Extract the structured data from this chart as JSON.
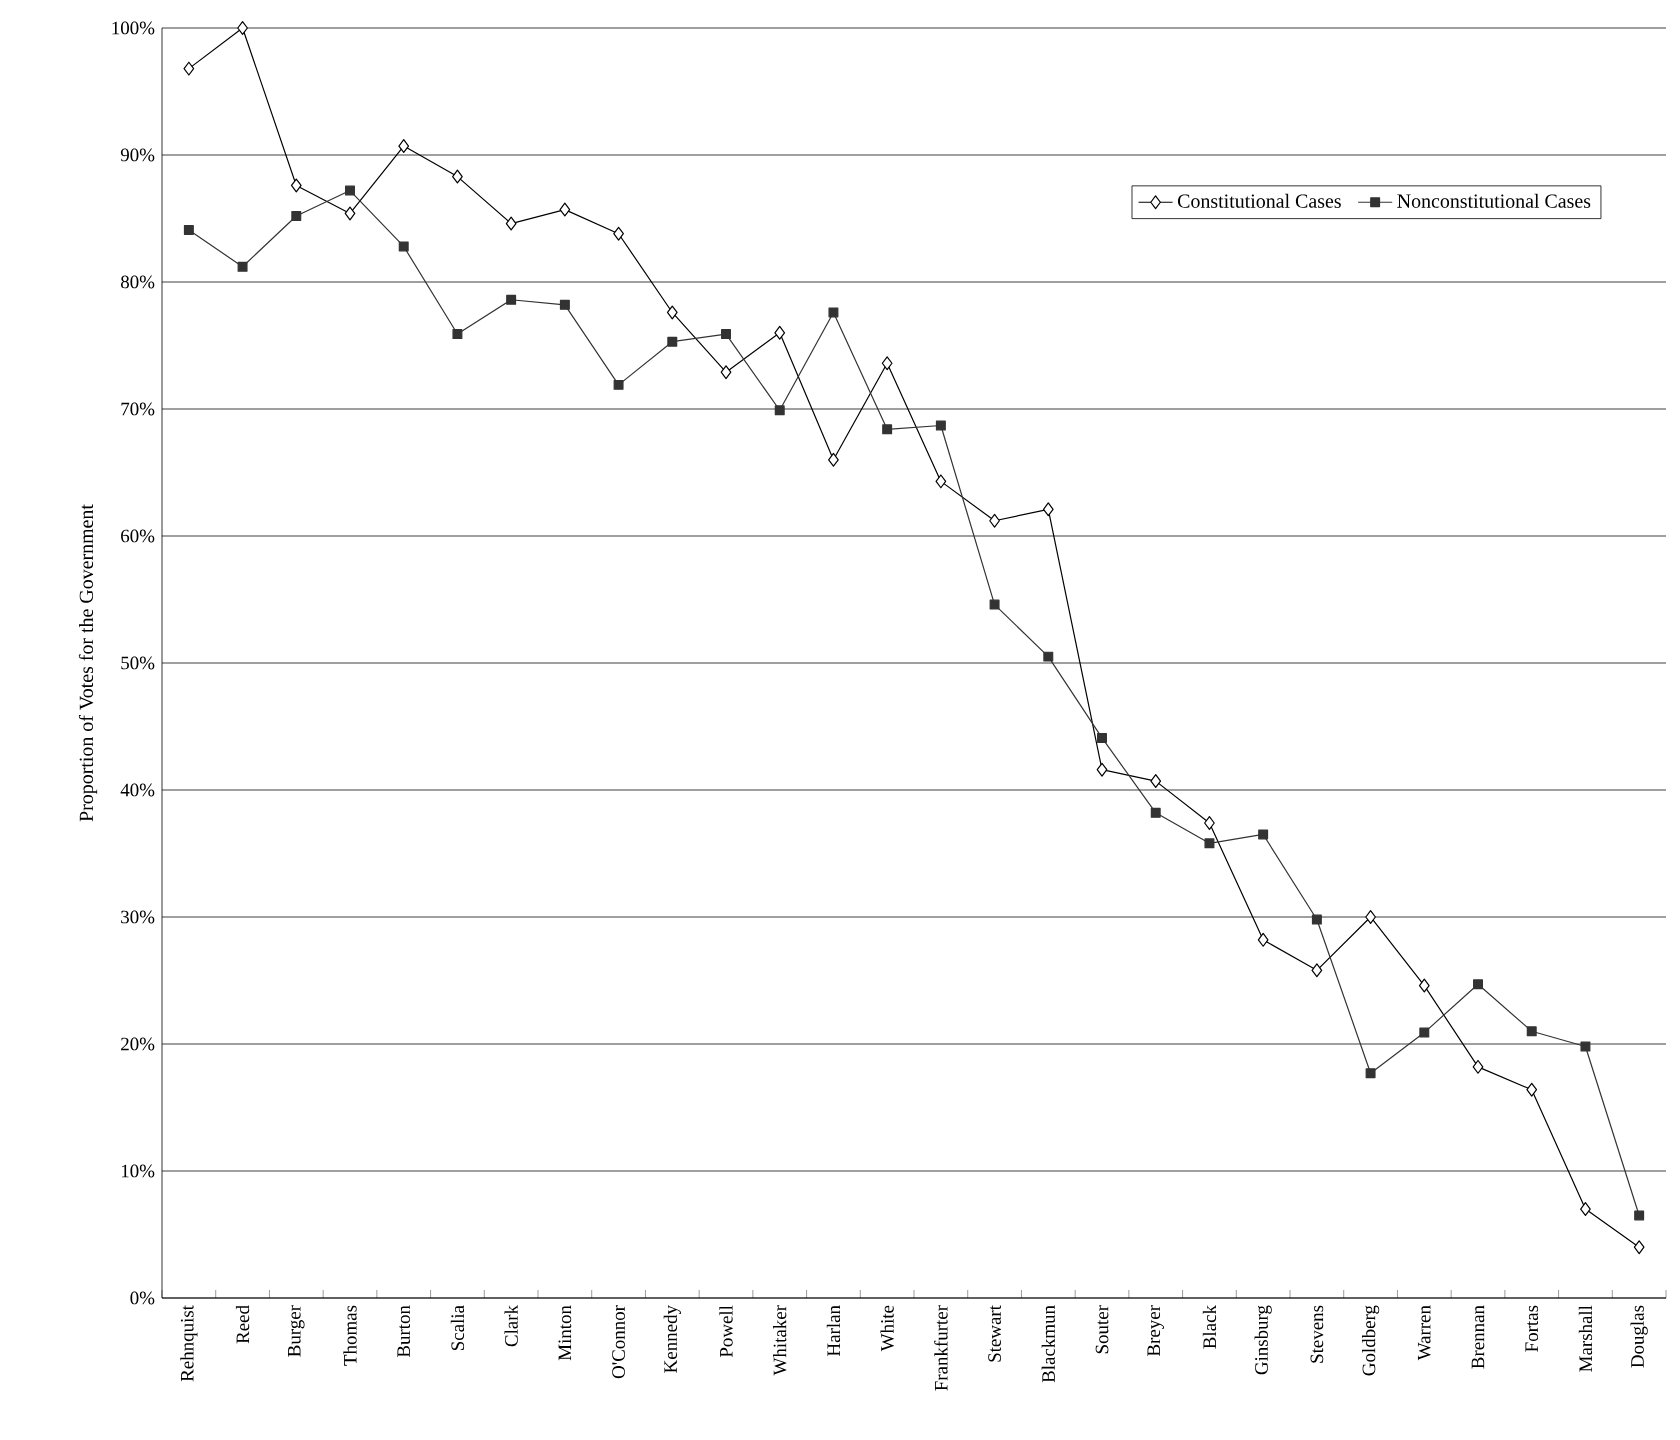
{
  "chart_data": {
    "type": "line",
    "ylabel": "Proportion of Votes for the Government",
    "categories": [
      "Rehnquist",
      "Reed",
      "Burger",
      "Thomas",
      "Burton",
      "Scalia",
      "Clark",
      "Minton",
      "O'Connor",
      "Kennedy",
      "Powell",
      "Whitaker",
      "Harlan",
      "White",
      "Frankfurter",
      "Stewart",
      "Blackmun",
      "Souter",
      "Breyer",
      "Black",
      "Ginsburg",
      "Stevens",
      "Goldberg",
      "Warren",
      "Brennan",
      "Fortas",
      "Marshall",
      "Douglas"
    ],
    "series": [
      {
        "name": "Constitutional Cases",
        "color": "#000000",
        "marker": "diamond",
        "values": [
          96.8,
          100,
          87.6,
          85.4,
          90.7,
          88.3,
          84.6,
          85.7,
          83.8,
          77.6,
          72.9,
          76.0,
          66.0,
          73.6,
          64.3,
          61.2,
          62.1,
          41.6,
          40.7,
          37.4,
          28.2,
          25.8,
          30.0,
          24.6,
          18.2,
          16.4,
          7.0,
          4.0
        ]
      },
      {
        "name": "Nonconstitutional Cases",
        "color": "#333333",
        "marker": "square",
        "values": [
          84.1,
          81.2,
          85.2,
          87.2,
          82.8,
          75.9,
          78.6,
          78.2,
          71.9,
          75.3,
          75.9,
          69.9,
          77.6,
          68.4,
          68.7,
          54.6,
          50.5,
          44.1,
          38.2,
          35.8,
          36.5,
          29.8,
          17.7,
          20.9,
          24.7,
          21.0,
          19.8,
          6.5
        ]
      }
    ],
    "ylim": [
      0,
      100
    ],
    "yticks": [
      {
        "value": 0,
        "label": "0%"
      },
      {
        "value": 10,
        "label": "10%"
      },
      {
        "value": 20,
        "label": "20%"
      },
      {
        "value": 30,
        "label": "30%"
      },
      {
        "value": 40,
        "label": "40%"
      },
      {
        "value": 50,
        "label": "50%"
      },
      {
        "value": 60,
        "label": "60%"
      },
      {
        "value": 70,
        "label": "70%"
      },
      {
        "value": 80,
        "label": "80%"
      },
      {
        "value": 90,
        "label": "90%"
      },
      {
        "value": 100,
        "label": "100%"
      }
    ],
    "grid": "y",
    "legend": "top right"
  }
}
